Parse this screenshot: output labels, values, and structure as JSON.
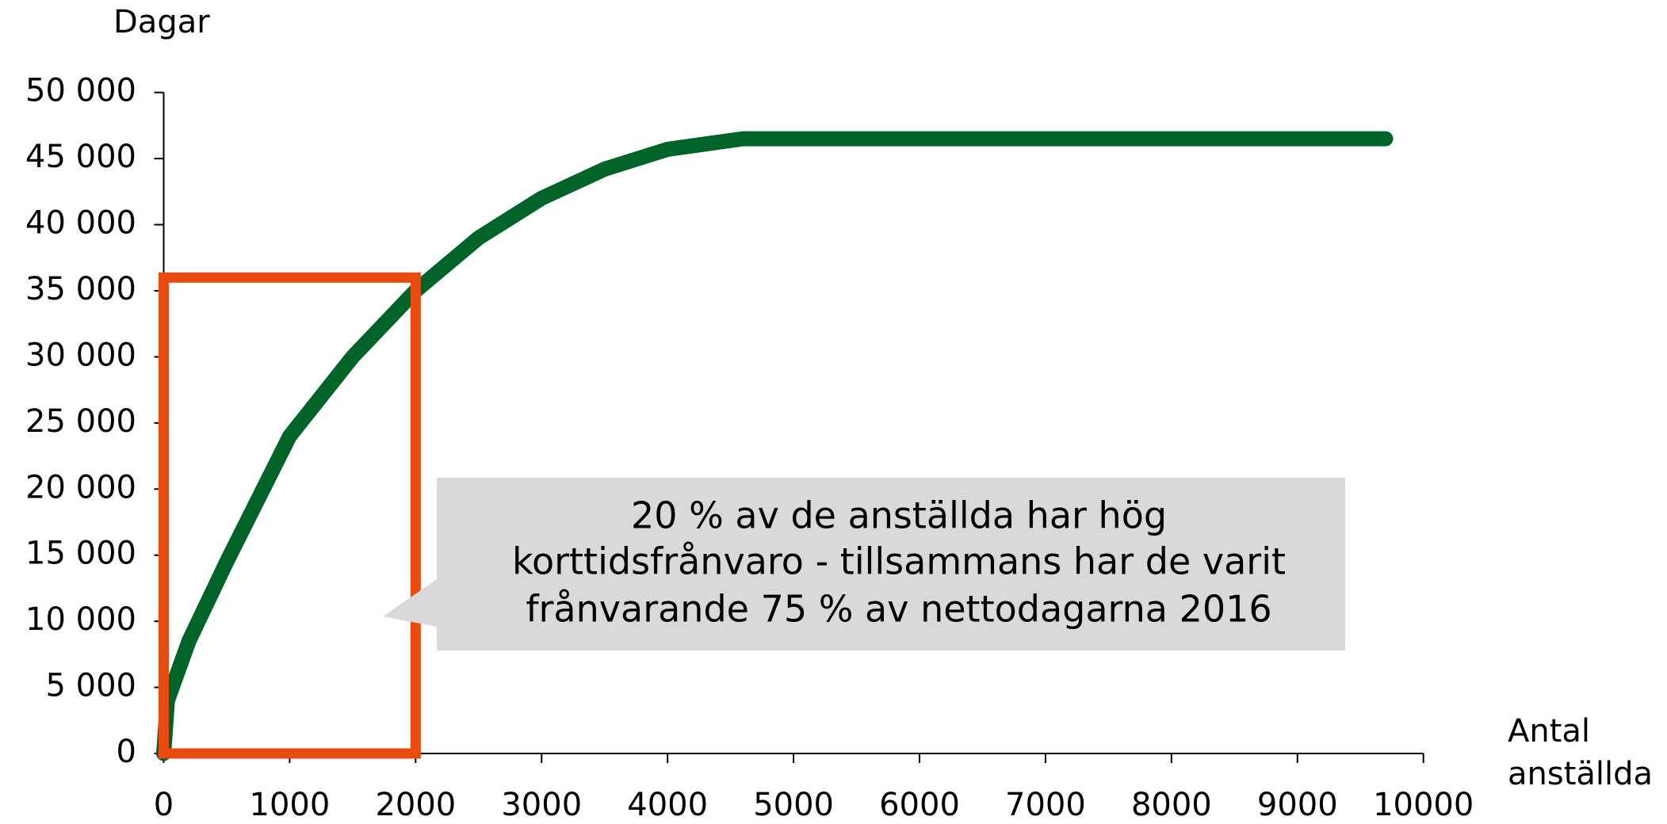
{
  "chart_data": {
    "type": "line",
    "y_label": "Dagar",
    "x_label": [
      "Antal",
      "anställda"
    ],
    "x": [
      0,
      30,
      200,
      500,
      1000,
      1500,
      2000,
      2500,
      3000,
      3500,
      4000,
      4600,
      9700
    ],
    "series": [
      {
        "color": "#006428",
        "values": [
          0,
          4000,
          8500,
          14500,
          24000,
          30000,
          35000,
          39000,
          42000,
          44200,
          45700,
          46500,
          46500
        ]
      }
    ],
    "xlim": [
      0,
      10000
    ],
    "xticks": [
      0,
      1000,
      2000,
      3000,
      4000,
      5000,
      6000,
      7000,
      8000,
      9000,
      10000
    ],
    "ylim": [
      0,
      50000
    ],
    "yticks": [
      {
        "value": 0,
        "label": "0"
      },
      {
        "value": 5000,
        "label": "5 000"
      },
      {
        "value": 10000,
        "label": "10 000"
      },
      {
        "value": 15000,
        "label": "15 000"
      },
      {
        "value": 20000,
        "label": "20 000"
      },
      {
        "value": 25000,
        "label": "25 000"
      },
      {
        "value": 30000,
        "label": "30 000"
      },
      {
        "value": 35000,
        "label": "35 000"
      },
      {
        "value": 40000,
        "label": "40 000"
      },
      {
        "value": 45000,
        "label": "45 000"
      },
      {
        "value": 50000,
        "label": "50 000"
      }
    ],
    "highlight": {
      "x": [
        0,
        2000
      ],
      "y": [
        0,
        36000
      ],
      "color": "#e84a10"
    },
    "annotation": [
      "20 % av de anställda har hög",
      "korttidsfrånvaro - tillsammans har de varit",
      "frånvarande 75 % av nettodagarna 2016"
    ]
  }
}
